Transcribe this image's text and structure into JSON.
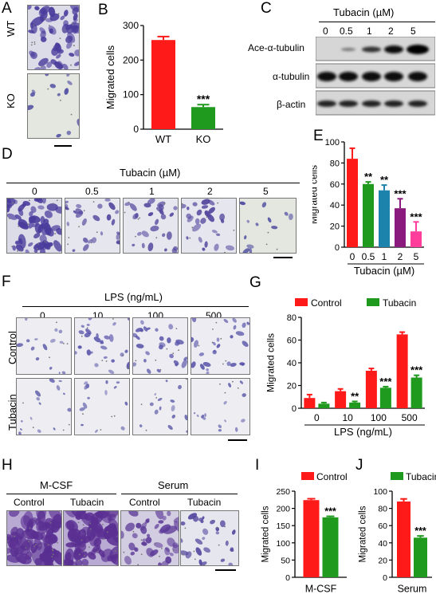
{
  "panels": {
    "A": {
      "label": "A",
      "rows": [
        "WT",
        "KO"
      ]
    },
    "B": {
      "label": "B"
    },
    "C": {
      "label": "C",
      "title": "Tubacin (µM)",
      "doses": [
        "0",
        "0.5",
        "1",
        "2",
        "5"
      ],
      "rows": [
        "Ace-α-tubulin",
        "α-tubulin",
        "β-actin"
      ]
    },
    "D": {
      "label": "D",
      "title": "Tubacin (µM)",
      "doses": [
        "0",
        "0.5",
        "1",
        "2",
        "5"
      ]
    },
    "E": {
      "label": "E"
    },
    "F": {
      "label": "F",
      "title": "LPS (ng/mL)",
      "doses": [
        "0",
        "10",
        "100",
        "500"
      ],
      "rows": [
        "Control",
        "Tubacin"
      ]
    },
    "G": {
      "label": "G"
    },
    "H": {
      "label": "H",
      "groups": [
        "M-CSF",
        "Serum"
      ],
      "columns": [
        "Control",
        "Tubacin",
        "Control",
        "Tubacin"
      ]
    },
    "I": {
      "label": "I"
    },
    "J": {
      "label": "J"
    }
  },
  "chart_data": [
    {
      "id": "B",
      "type": "bar",
      "categories": [
        "WT",
        "KO"
      ],
      "values": [
        258,
        64
      ],
      "errors": [
        10,
        7
      ],
      "colors": [
        "#ff1a1a",
        "#1f9a1f"
      ],
      "sig": [
        "",
        "***"
      ],
      "ylabel": "Migrated cells",
      "ylim": [
        0,
        300
      ],
      "yticks": [
        0,
        100,
        200,
        300
      ]
    },
    {
      "id": "E",
      "type": "bar",
      "categories": [
        "0",
        "0.5",
        "1",
        "2",
        "5"
      ],
      "values": [
        84,
        60,
        54,
        37,
        15
      ],
      "errors": [
        10,
        2,
        5,
        9,
        9
      ],
      "colors": [
        "#ff1a1a",
        "#1f9a1f",
        "#1c84ac",
        "#8b1a7e",
        "#ff3d9a"
      ],
      "sig": [
        "",
        "**",
        "**",
        "***",
        "***"
      ],
      "ylabel": "Migrated cells",
      "xlabel": "Tubacin (µM)",
      "ylim": [
        0,
        100
      ],
      "yticks": [
        0,
        20,
        40,
        60,
        80,
        100
      ]
    },
    {
      "id": "G",
      "type": "bar",
      "categories": [
        "0",
        "10",
        "100",
        "500"
      ],
      "series": [
        {
          "name": "Control",
          "color": "#ff1a1a",
          "values": [
            9,
            15,
            33,
            65
          ],
          "errors": [
            3,
            2,
            2,
            2
          ]
        },
        {
          "name": "Tubacin",
          "color": "#1f9a1f",
          "values": [
            4,
            5,
            18,
            27
          ],
          "errors": [
            1,
            1,
            1,
            2
          ],
          "sig": [
            "",
            "**",
            "***",
            "***"
          ]
        }
      ],
      "ylabel": "Migrated cells",
      "xlabel": "LPS (ng/mL)",
      "ylim": [
        0,
        80
      ],
      "yticks": [
        0,
        20,
        40,
        60,
        80
      ],
      "legend": "top"
    },
    {
      "id": "I",
      "type": "bar",
      "categories": [
        "M-CSF"
      ],
      "series": [
        {
          "name": "Control",
          "color": "#ff1a1a",
          "values": [
            224
          ],
          "errors": [
            4
          ]
        },
        {
          "name": "Tubacin",
          "color": "#1f9a1f",
          "values": [
            174
          ],
          "errors": [
            3
          ],
          "sig": [
            "***"
          ]
        }
      ],
      "ylabel": "Migrated cells",
      "ylim": [
        0,
        250
      ],
      "yticks": [
        0,
        50,
        100,
        150,
        200,
        250
      ],
      "legend": "top"
    },
    {
      "id": "J",
      "type": "bar",
      "categories": [
        "Serum"
      ],
      "series": [
        {
          "name": "Control",
          "color": "#ff1a1a",
          "values": [
            88
          ],
          "errors": [
            3
          ]
        },
        {
          "name": "Tubacin",
          "color": "#1f9a1f",
          "values": [
            46
          ],
          "errors": [
            2
          ],
          "sig": [
            "***"
          ]
        }
      ],
      "ylabel": "Migrated cells",
      "ylim": [
        0,
        100
      ],
      "yticks": [
        0,
        20,
        40,
        60,
        80,
        100
      ],
      "legend": "top"
    }
  ]
}
